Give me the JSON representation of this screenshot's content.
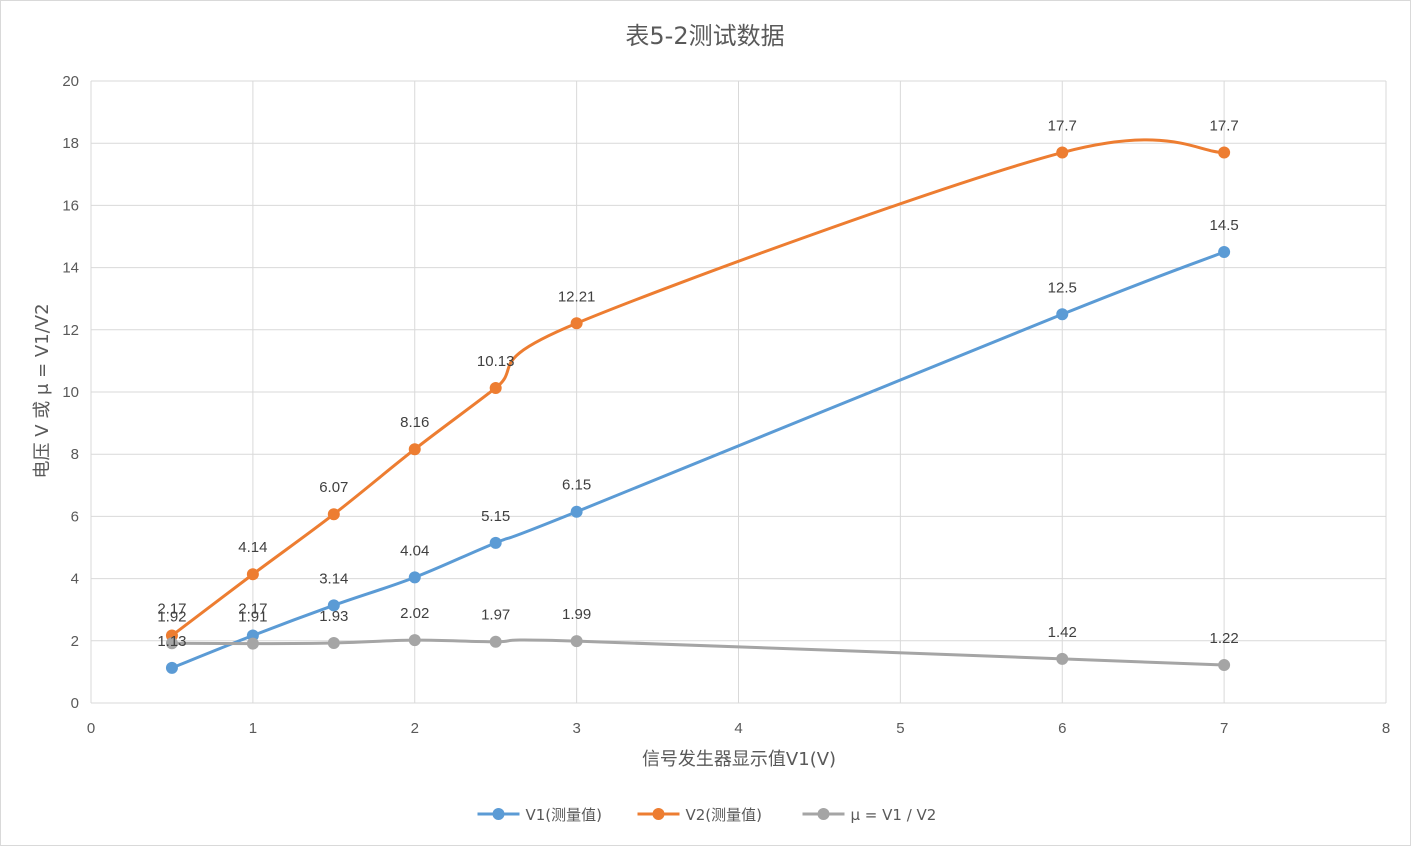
{
  "colors": {
    "v1": "#5b9bd5",
    "v2": "#ed7d31",
    "mu": "#a5a5a5",
    "grid": "#d9d9d9",
    "text": "#595959"
  },
  "chart_data": {
    "type": "line",
    "title": "表5-2测试数据",
    "xlabel": "信号发生器显示值V1(V)",
    "ylabel": "电压 V 或 μ = V1/V2",
    "xlim": [
      0,
      8
    ],
    "ylim": [
      0,
      20
    ],
    "x_ticks": [
      "0",
      "1",
      "2",
      "3",
      "4",
      "5",
      "6",
      "7",
      "8"
    ],
    "y_ticks": [
      "0",
      "2",
      "4",
      "6",
      "8",
      "10",
      "12",
      "14",
      "16",
      "18",
      "20"
    ],
    "grid": true,
    "smooth": true,
    "legend_position": "bottom",
    "x": [
      0.5,
      1,
      1.5,
      2,
      2.5,
      3,
      6,
      7
    ],
    "series": [
      {
        "name": "V1(测量值)",
        "color": "#5b9bd5",
        "values": [
          1.13,
          2.17,
          3.14,
          4.04,
          5.15,
          6.15,
          12.5,
          14.5
        ],
        "labels": [
          "1.13",
          "2.17",
          "3.14",
          "4.04",
          "5.15",
          "6.15",
          "12.5",
          "14.5"
        ]
      },
      {
        "name": "V2(测量值)",
        "color": "#ed7d31",
        "values": [
          2.17,
          4.14,
          6.07,
          8.16,
          10.13,
          12.21,
          17.7,
          17.7
        ],
        "labels": [
          "2.17",
          "4.14",
          "6.07",
          "8.16",
          "10.13",
          "12.21",
          "17.7",
          "17.7"
        ]
      },
      {
        "name": "μ = V1 / V2",
        "color": "#a5a5a5",
        "values": [
          1.92,
          1.91,
          1.93,
          2.02,
          1.97,
          1.99,
          1.42,
          1.22
        ],
        "labels": [
          "1.92",
          "1.91",
          "1.93",
          "2.02",
          "1.97",
          "1.99",
          "1.42",
          "1.22"
        ]
      }
    ]
  }
}
